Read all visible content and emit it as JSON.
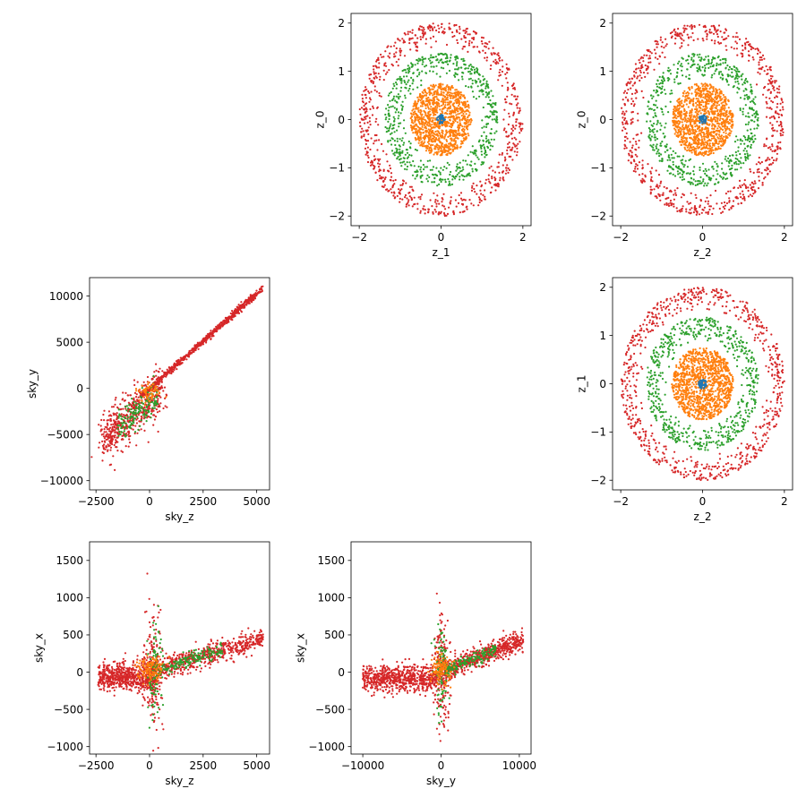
{
  "figure": {
    "layout": "3x3 grid of scatter plots; three panels empty"
  },
  "colors": {
    "blue": "#1f77b4",
    "orange": "#ff7f0e",
    "green": "#2ca02c",
    "red": "#d62728"
  },
  "chart_data": [
    {
      "id": "z1_z0",
      "type": "scatter",
      "grid_position": "row1-col2",
      "xlabel": "z_1",
      "ylabel": "z_0",
      "xlim": [
        -2.2,
        2.2
      ],
      "ylim": [
        -2.2,
        2.2
      ],
      "xticks": [
        -2,
        0,
        2
      ],
      "yticks": [
        -2,
        -1,
        0,
        1,
        2
      ],
      "series": [
        {
          "color": "#d62728",
          "shape": "ring",
          "r_min": 1.5,
          "r_max": 2.0,
          "count": 720
        },
        {
          "color": "#2ca02c",
          "shape": "ring",
          "r_min": 0.85,
          "r_max": 1.38,
          "count": 620
        },
        {
          "color": "#ff7f0e",
          "shape": "disc",
          "r_min": 0.0,
          "r_max": 0.75,
          "count": 1100
        },
        {
          "color": "#1f77b4",
          "shape": "disc",
          "r_min": 0.0,
          "r_max": 0.1,
          "count": 40
        }
      ]
    },
    {
      "id": "z2_z0",
      "type": "scatter",
      "grid_position": "row1-col3",
      "xlabel": "z_2",
      "ylabel": "z_0",
      "xlim": [
        -2.2,
        2.2
      ],
      "ylim": [
        -2.2,
        2.2
      ],
      "xticks": [
        -2,
        0,
        2
      ],
      "yticks": [
        -2,
        -1,
        0,
        1,
        2
      ],
      "series": [
        {
          "color": "#d62728",
          "shape": "ring",
          "r_min": 1.5,
          "r_max": 2.0,
          "count": 720
        },
        {
          "color": "#2ca02c",
          "shape": "ring",
          "r_min": 0.85,
          "r_max": 1.38,
          "count": 620
        },
        {
          "color": "#ff7f0e",
          "shape": "disc",
          "r_min": 0.0,
          "r_max": 0.75,
          "count": 1100
        },
        {
          "color": "#1f77b4",
          "shape": "disc",
          "r_min": 0.0,
          "r_max": 0.1,
          "count": 40
        }
      ]
    },
    {
      "id": "skyz_skyy",
      "type": "scatter",
      "grid_position": "row2-col1",
      "xlabel": "sky_z",
      "ylabel": "sky_y",
      "xlim": [
        -2800,
        5600
      ],
      "ylim": [
        -11000,
        12000
      ],
      "xticks": [
        -2500,
        0,
        2500,
        5000
      ],
      "yticks": [
        -10000,
        -5000,
        0,
        5000,
        10000
      ],
      "series": [
        {
          "color": "#d62728",
          "shape": "sky_yz_main",
          "count": 1300
        },
        {
          "color": "#2ca02c",
          "shape": "sky_yz_green",
          "count": 160
        },
        {
          "color": "#ff7f0e",
          "shape": "sky_yz_core",
          "count": 60
        }
      ]
    },
    {
      "id": "z2_z1",
      "type": "scatter",
      "grid_position": "row2-col3",
      "xlabel": "z_2",
      "ylabel": "z_1",
      "xlim": [
        -2.2,
        2.2
      ],
      "ylim": [
        -2.2,
        2.2
      ],
      "xticks": [
        -2,
        0,
        2
      ],
      "yticks": [
        -2,
        -1,
        0,
        1,
        2
      ],
      "series": [
        {
          "color": "#d62728",
          "shape": "ring",
          "r_min": 1.5,
          "r_max": 2.0,
          "count": 720
        },
        {
          "color": "#2ca02c",
          "shape": "ring",
          "r_min": 0.85,
          "r_max": 1.38,
          "count": 620
        },
        {
          "color": "#ff7f0e",
          "shape": "disc",
          "r_min": 0.0,
          "r_max": 0.75,
          "count": 1100
        },
        {
          "color": "#1f77b4",
          "shape": "disc",
          "r_min": 0.0,
          "r_max": 0.1,
          "count": 40
        }
      ]
    },
    {
      "id": "skyz_skyx",
      "type": "scatter",
      "grid_position": "row3-col1",
      "xlabel": "sky_z",
      "ylabel": "sky_x",
      "xlim": [
        -2800,
        5600
      ],
      "ylim": [
        -1100,
        1750
      ],
      "xticks": [
        -2500,
        0,
        2500,
        5000
      ],
      "yticks": [
        -1000,
        -500,
        0,
        500,
        1000,
        1500
      ],
      "series": [
        {
          "color": "#d62728",
          "shape": "sky_zx_main",
          "count": 1500
        },
        {
          "color": "#2ca02c",
          "shape": "sky_zx_green",
          "count": 260
        },
        {
          "color": "#ff7f0e",
          "shape": "sky_zx_core",
          "count": 120
        }
      ]
    },
    {
      "id": "skyy_skyx",
      "type": "scatter",
      "grid_position": "row3-col2",
      "xlabel": "sky_y",
      "ylabel": "sky_x",
      "xlim": [
        -11500,
        11500
      ],
      "ylim": [
        -1100,
        1750
      ],
      "xticks": [
        -10000,
        0,
        10000
      ],
      "yticks": [
        -1000,
        -500,
        0,
        500,
        1000,
        1500
      ],
      "series": [
        {
          "color": "#d62728",
          "shape": "sky_yx_main",
          "count": 1500
        },
        {
          "color": "#2ca02c",
          "shape": "sky_yx_green",
          "count": 260
        },
        {
          "color": "#ff7f0e",
          "shape": "sky_yx_core",
          "count": 120
        }
      ]
    }
  ]
}
